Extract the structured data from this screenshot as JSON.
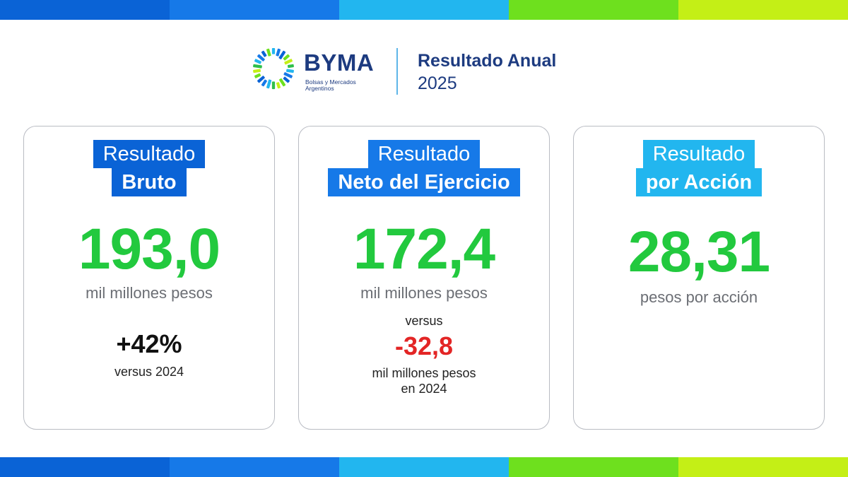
{
  "colors": {
    "navy": "#1d3b80",
    "green": "#22c93e",
    "red": "#e32525",
    "label_blue_1": "#0a63d6",
    "label_blue_2": "#1679e8",
    "label_cyan": "#22b6ef",
    "stripe": [
      "#0a63d6",
      "#1679e8",
      "#22b6ef",
      "#6ee01e",
      "#c4ef16"
    ]
  },
  "header": {
    "logo_text": "BYMA",
    "logo_subtitle": "Bolsas y Mercados Argentinos",
    "title": "Resultado Anual",
    "year": "2025"
  },
  "cards": [
    {
      "label_line1": "Resultado",
      "label_line2": "Bruto",
      "value": "193,0",
      "unit": "mil millones pesos",
      "change": "+42%",
      "change_note": "versus 2024"
    },
    {
      "label_line1": "Resultado",
      "label_line2": "Neto del Ejercicio",
      "value": "172,4",
      "unit": "mil millones pesos",
      "versus_word": "versus",
      "prior_value": "-32,8",
      "prior_unit_line1": "mil millones pesos",
      "prior_unit_line2": "en 2024"
    },
    {
      "label_line1": "Resultado",
      "label_line2": "por Acción",
      "value": "28,31",
      "unit": "pesos por acción"
    }
  ]
}
